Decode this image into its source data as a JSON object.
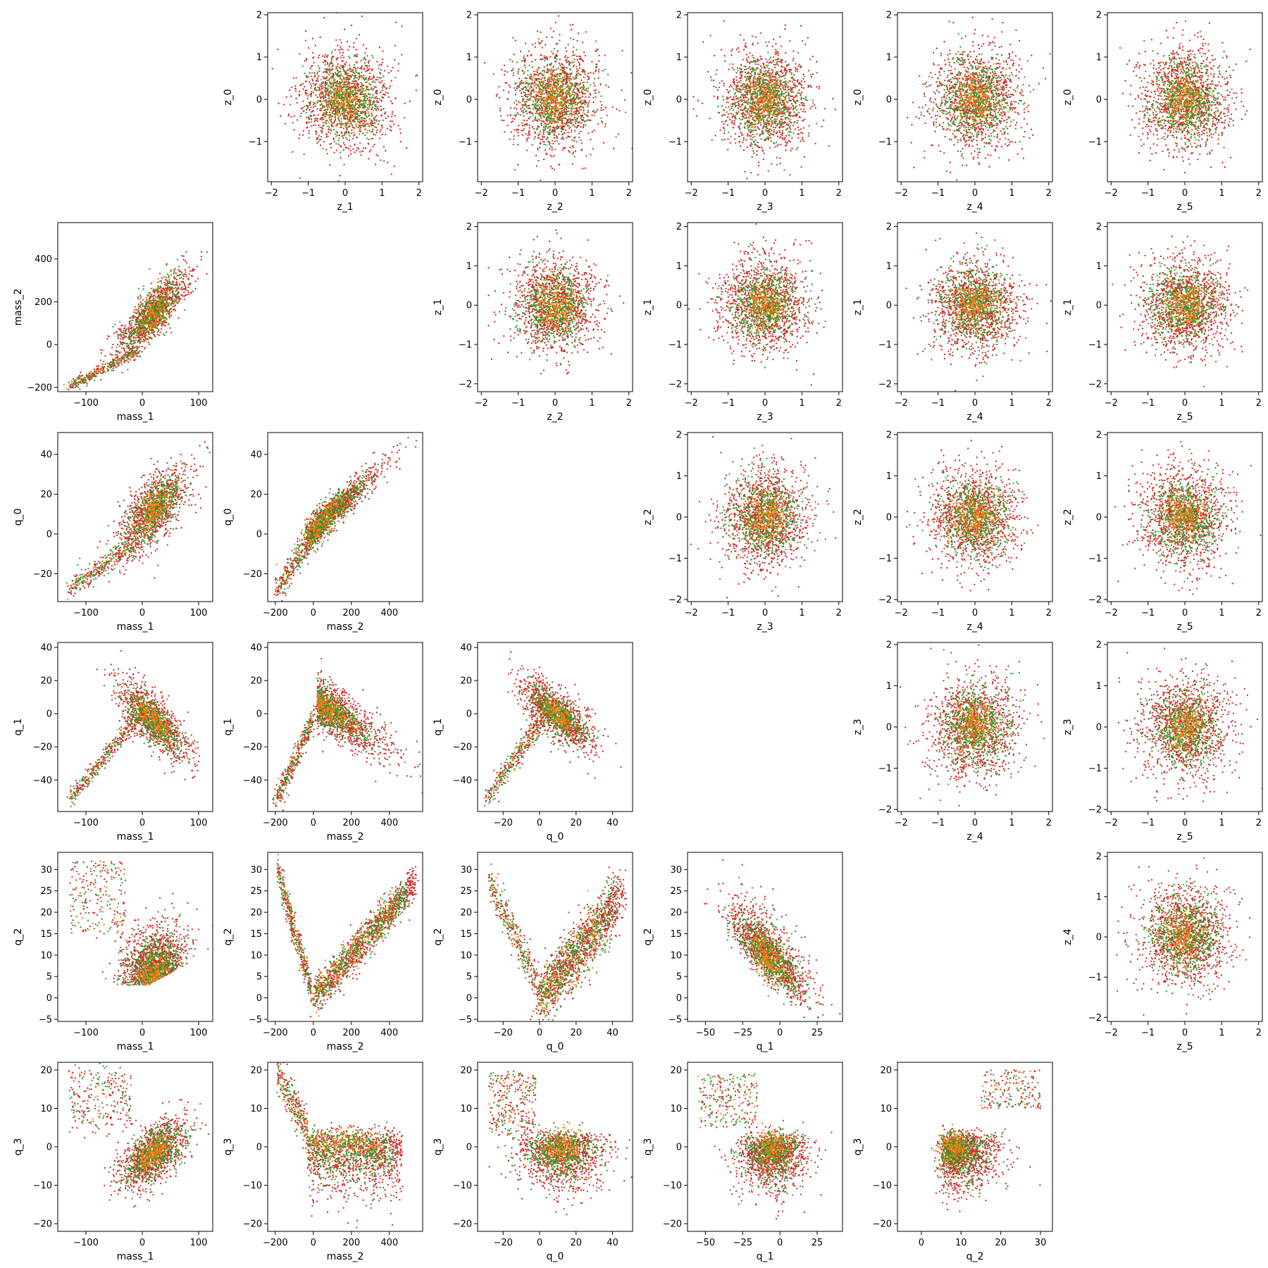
{
  "figure": {
    "rows": 6,
    "cols": 6,
    "colors": {
      "red": "#d62728",
      "green": "#2ca02c",
      "orange": "#ff7f0e",
      "axis": "#000000",
      "background": "#ffffff"
    },
    "series": [
      {
        "color": "red",
        "points_per_panel": 1100
      },
      {
        "color": "green",
        "points_per_panel": 600
      },
      {
        "color": "orange",
        "points_per_panel": 220
      }
    ],
    "marker": "dot"
  },
  "chart_data": [
    {
      "type": "scatter",
      "row": 0,
      "col": 1,
      "xlabel": "z_1",
      "ylabel": "z_0",
      "xlim": [
        -2.1,
        2.1
      ],
      "ylim": [
        -1.95,
        2.05
      ],
      "xticks": [
        -2,
        -1,
        0,
        1,
        2
      ],
      "yticks": [
        -1,
        0,
        1,
        2
      ],
      "xtick_labels": [
        "−2",
        "−1",
        "0",
        "1",
        "2"
      ],
      "ytick_labels": [
        "−1",
        "0",
        "1",
        "2"
      ],
      "pattern": "blob"
    },
    {
      "type": "scatter",
      "row": 0,
      "col": 2,
      "xlabel": "z_2",
      "ylabel": "z_0",
      "xlim": [
        -2.1,
        2.1
      ],
      "ylim": [
        -1.95,
        2.05
      ],
      "xticks": [
        -2,
        -1,
        0,
        1,
        2
      ],
      "yticks": [
        -1,
        0,
        1,
        2
      ],
      "xtick_labels": [
        "−2",
        "−1",
        "0",
        "1",
        "2"
      ],
      "ytick_labels": [
        "−1",
        "0",
        "1",
        "2"
      ],
      "pattern": "blob"
    },
    {
      "type": "scatter",
      "row": 0,
      "col": 3,
      "xlabel": "z_3",
      "ylabel": "z_0",
      "xlim": [
        -2.1,
        2.1
      ],
      "ylim": [
        -1.95,
        2.05
      ],
      "xticks": [
        -2,
        -1,
        0,
        1,
        2
      ],
      "yticks": [
        -1,
        0,
        1,
        2
      ],
      "xtick_labels": [
        "−2",
        "−1",
        "0",
        "1",
        "2"
      ],
      "ytick_labels": [
        "−1",
        "0",
        "1",
        "2"
      ],
      "pattern": "blob"
    },
    {
      "type": "scatter",
      "row": 0,
      "col": 4,
      "xlabel": "z_4",
      "ylabel": "z_0",
      "xlim": [
        -2.1,
        2.1
      ],
      "ylim": [
        -1.95,
        2.05
      ],
      "xticks": [
        -2,
        -1,
        0,
        1,
        2
      ],
      "yticks": [
        -1,
        0,
        1,
        2
      ],
      "xtick_labels": [
        "−2",
        "−1",
        "0",
        "1",
        "2"
      ],
      "ytick_labels": [
        "−1",
        "0",
        "1",
        "2"
      ],
      "pattern": "blob"
    },
    {
      "type": "scatter",
      "row": 0,
      "col": 5,
      "xlabel": "z_5",
      "ylabel": "z_0",
      "xlim": [
        -2.1,
        2.1
      ],
      "ylim": [
        -1.95,
        2.05
      ],
      "xticks": [
        -2,
        -1,
        0,
        1,
        2
      ],
      "yticks": [
        -1,
        0,
        1,
        2
      ],
      "xtick_labels": [
        "−2",
        "−1",
        "0",
        "1",
        "2"
      ],
      "ytick_labels": [
        "−1",
        "0",
        "1",
        "2"
      ],
      "pattern": "blob"
    },
    {
      "type": "scatter",
      "row": 1,
      "col": 0,
      "xlabel": "mass_1",
      "ylabel": "mass_2",
      "xlim": [
        -150,
        125
      ],
      "ylim": [
        -220,
        570
      ],
      "xticks": [
        -100,
        0,
        100
      ],
      "yticks": [
        -200,
        0,
        200,
        400
      ],
      "xtick_labels": [
        "−100",
        "0",
        "100"
      ],
      "ytick_labels": [
        "−200",
        "0",
        "200",
        "400"
      ],
      "pattern": "m1_m2"
    },
    {
      "type": "scatter",
      "row": 1,
      "col": 2,
      "xlabel": "z_2",
      "ylabel": "z_1",
      "xlim": [
        -2.1,
        2.1
      ],
      "ylim": [
        -2.2,
        2.1
      ],
      "xticks": [
        -2,
        -1,
        0,
        1,
        2
      ],
      "yticks": [
        -2,
        -1,
        0,
        1,
        2
      ],
      "xtick_labels": [
        "−2",
        "−1",
        "0",
        "1",
        "2"
      ],
      "ytick_labels": [
        "−2",
        "−1",
        "0",
        "1",
        "2"
      ],
      "pattern": "blob"
    },
    {
      "type": "scatter",
      "row": 1,
      "col": 3,
      "xlabel": "z_3",
      "ylabel": "z_1",
      "xlim": [
        -2.1,
        2.1
      ],
      "ylim": [
        -2.2,
        2.1
      ],
      "xticks": [
        -2,
        -1,
        0,
        1,
        2
      ],
      "yticks": [
        -2,
        -1,
        0,
        1,
        2
      ],
      "xtick_labels": [
        "−2",
        "−1",
        "0",
        "1",
        "2"
      ],
      "ytick_labels": [
        "−2",
        "−1",
        "0",
        "1",
        "2"
      ],
      "pattern": "blob"
    },
    {
      "type": "scatter",
      "row": 1,
      "col": 4,
      "xlabel": "z_4",
      "ylabel": "z_1",
      "xlim": [
        -2.1,
        2.1
      ],
      "ylim": [
        -2.2,
        2.1
      ],
      "xticks": [
        -2,
        -1,
        0,
        1,
        2
      ],
      "yticks": [
        -2,
        -1,
        0,
        1,
        2
      ],
      "xtick_labels": [
        "−2",
        "−1",
        "0",
        "1",
        "2"
      ],
      "ytick_labels": [
        "−2",
        "−1",
        "0",
        "1",
        "2"
      ],
      "pattern": "blob"
    },
    {
      "type": "scatter",
      "row": 1,
      "col": 5,
      "xlabel": "z_5",
      "ylabel": "z_1",
      "xlim": [
        -2.1,
        2.1
      ],
      "ylim": [
        -2.2,
        2.1
      ],
      "xticks": [
        -2,
        -1,
        0,
        1,
        2
      ],
      "yticks": [
        -2,
        -1,
        0,
        1,
        2
      ],
      "xtick_labels": [
        "−2",
        "−1",
        "0",
        "1",
        "2"
      ],
      "ytick_labels": [
        "−2",
        "−1",
        "0",
        "1",
        "2"
      ],
      "pattern": "blob"
    },
    {
      "type": "scatter",
      "row": 2,
      "col": 0,
      "xlabel": "mass_1",
      "ylabel": "q_0",
      "xlim": [
        -150,
        125
      ],
      "ylim": [
        -34,
        51
      ],
      "xticks": [
        -100,
        0,
        100
      ],
      "yticks": [
        -20,
        0,
        20,
        40
      ],
      "xtick_labels": [
        "−100",
        "0",
        "100"
      ],
      "ytick_labels": [
        "−20",
        "0",
        "20",
        "40"
      ],
      "pattern": "m1_q0"
    },
    {
      "type": "scatter",
      "row": 2,
      "col": 1,
      "xlabel": "mass_2",
      "ylabel": "q_0",
      "xlim": [
        -240,
        575
      ],
      "ylim": [
        -34,
        51
      ],
      "xticks": [
        -200,
        0,
        200,
        400
      ],
      "yticks": [
        -20,
        0,
        20,
        40
      ],
      "xtick_labels": [
        "−200",
        "0",
        "200",
        "400"
      ],
      "ytick_labels": [
        "−20",
        "0",
        "20",
        "40"
      ],
      "pattern": "m2_q0"
    },
    {
      "type": "scatter",
      "row": 2,
      "col": 3,
      "xlabel": "z_3",
      "ylabel": "z_2",
      "xlim": [
        -2.1,
        2.1
      ],
      "ylim": [
        -2.05,
        2.05
      ],
      "xticks": [
        -2,
        -1,
        0,
        1,
        2
      ],
      "yticks": [
        -2,
        -1,
        0,
        1,
        2
      ],
      "xtick_labels": [
        "−2",
        "−1",
        "0",
        "1",
        "2"
      ],
      "ytick_labels": [
        "−2",
        "−1",
        "0",
        "1",
        "2"
      ],
      "pattern": "blob"
    },
    {
      "type": "scatter",
      "row": 2,
      "col": 4,
      "xlabel": "z_4",
      "ylabel": "z_2",
      "xlim": [
        -2.1,
        2.1
      ],
      "ylim": [
        -2.05,
        2.05
      ],
      "xticks": [
        -2,
        -1,
        0,
        1,
        2
      ],
      "yticks": [
        -2,
        -1,
        0,
        1,
        2
      ],
      "xtick_labels": [
        "−2",
        "−1",
        "0",
        "1",
        "2"
      ],
      "ytick_labels": [
        "−2",
        "−1",
        "0",
        "1",
        "2"
      ],
      "pattern": "blob"
    },
    {
      "type": "scatter",
      "row": 2,
      "col": 5,
      "xlabel": "z_5",
      "ylabel": "z_2",
      "xlim": [
        -2.1,
        2.1
      ],
      "ylim": [
        -2.05,
        2.05
      ],
      "xticks": [
        -2,
        -1,
        0,
        1,
        2
      ],
      "yticks": [
        -2,
        -1,
        0,
        1,
        2
      ],
      "xtick_labels": [
        "−2",
        "−1",
        "0",
        "1",
        "2"
      ],
      "ytick_labels": [
        "−2",
        "−1",
        "0",
        "1",
        "2"
      ],
      "pattern": "blob"
    },
    {
      "type": "scatter",
      "row": 3,
      "col": 0,
      "xlabel": "mass_1",
      "ylabel": "q_1",
      "xlim": [
        -150,
        125
      ],
      "ylim": [
        -59,
        43
      ],
      "xticks": [
        -100,
        0,
        100
      ],
      "yticks": [
        -40,
        -20,
        0,
        20,
        40
      ],
      "xtick_labels": [
        "−100",
        "0",
        "100"
      ],
      "ytick_labels": [
        "−40",
        "−20",
        "0",
        "20",
        "40"
      ],
      "pattern": "m1_q1"
    },
    {
      "type": "scatter",
      "row": 3,
      "col": 1,
      "xlabel": "mass_2",
      "ylabel": "q_1",
      "xlim": [
        -240,
        575
      ],
      "ylim": [
        -59,
        43
      ],
      "xticks": [
        -200,
        0,
        200,
        400
      ],
      "yticks": [
        -40,
        -20,
        0,
        20,
        40
      ],
      "xtick_labels": [
        "−200",
        "0",
        "200",
        "400"
      ],
      "ytick_labels": [
        "−40",
        "−20",
        "0",
        "20",
        "40"
      ],
      "pattern": "m2_q1"
    },
    {
      "type": "scatter",
      "row": 3,
      "col": 2,
      "xlabel": "q_0",
      "ylabel": "q_1",
      "xlim": [
        -34,
        51
      ],
      "ylim": [
        -59,
        43
      ],
      "xticks": [
        -20,
        0,
        20,
        40
      ],
      "yticks": [
        -40,
        -20,
        0,
        20,
        40
      ],
      "xtick_labels": [
        "−20",
        "0",
        "20",
        "40"
      ],
      "ytick_labels": [
        "−40",
        "−20",
        "0",
        "20",
        "40"
      ],
      "pattern": "q0_q1"
    },
    {
      "type": "scatter",
      "row": 3,
      "col": 4,
      "xlabel": "z_4",
      "ylabel": "z_3",
      "xlim": [
        -2.1,
        2.1
      ],
      "ylim": [
        -2.05,
        2.05
      ],
      "xticks": [
        -2,
        -1,
        0,
        1,
        2
      ],
      "yticks": [
        -2,
        -1,
        0,
        1,
        2
      ],
      "xtick_labels": [
        "−2",
        "−1",
        "0",
        "1",
        "2"
      ],
      "ytick_labels": [
        "−2",
        "−1",
        "0",
        "1",
        "2"
      ],
      "pattern": "blob"
    },
    {
      "type": "scatter",
      "row": 3,
      "col": 5,
      "xlabel": "z_5",
      "ylabel": "z_3",
      "xlim": [
        -2.1,
        2.1
      ],
      "ylim": [
        -2.05,
        2.05
      ],
      "xticks": [
        -2,
        -1,
        0,
        1,
        2
      ],
      "yticks": [
        -2,
        -1,
        0,
        1,
        2
      ],
      "xtick_labels": [
        "−2",
        "−1",
        "0",
        "1",
        "2"
      ],
      "ytick_labels": [
        "−2",
        "−1",
        "0",
        "1",
        "2"
      ],
      "pattern": "blob"
    },
    {
      "type": "scatter",
      "row": 4,
      "col": 0,
      "xlabel": "mass_1",
      "ylabel": "q_2",
      "xlim": [
        -150,
        125
      ],
      "ylim": [
        -5.5,
        34
      ],
      "xticks": [
        -100,
        0,
        100
      ],
      "yticks": [
        -5,
        0,
        5,
        10,
        15,
        20,
        25,
        30
      ],
      "xtick_labels": [
        "−100",
        "0",
        "100"
      ],
      "ytick_labels": [
        "−5",
        "0",
        "5",
        "10",
        "15",
        "20",
        "25",
        "30"
      ],
      "pattern": "m1_q2"
    },
    {
      "type": "scatter",
      "row": 4,
      "col": 1,
      "xlabel": "mass_2",
      "ylabel": "q_2",
      "xlim": [
        -240,
        575
      ],
      "ylim": [
        -5.5,
        34
      ],
      "xticks": [
        -200,
        0,
        200,
        400
      ],
      "yticks": [
        -5,
        0,
        5,
        10,
        15,
        20,
        25,
        30
      ],
      "xtick_labels": [
        "−200",
        "0",
        "200",
        "400"
      ],
      "ytick_labels": [
        "−5",
        "0",
        "5",
        "10",
        "15",
        "20",
        "25",
        "30"
      ],
      "pattern": "m2_q2"
    },
    {
      "type": "scatter",
      "row": 4,
      "col": 2,
      "xlabel": "q_0",
      "ylabel": "q_2",
      "xlim": [
        -34,
        51
      ],
      "ylim": [
        -5.5,
        34
      ],
      "xticks": [
        -20,
        0,
        20,
        40
      ],
      "yticks": [
        -5,
        0,
        5,
        10,
        15,
        20,
        25,
        30
      ],
      "xtick_labels": [
        "−20",
        "0",
        "20",
        "40"
      ],
      "ytick_labels": [
        "−5",
        "0",
        "5",
        "10",
        "15",
        "20",
        "25",
        "30"
      ],
      "pattern": "q0_q2"
    },
    {
      "type": "scatter",
      "row": 4,
      "col": 3,
      "xlabel": "q_1",
      "ylabel": "q_2",
      "xlim": [
        -62,
        42
      ],
      "ylim": [
        -5.5,
        34
      ],
      "xticks": [
        -50,
        -25,
        0,
        25
      ],
      "yticks": [
        -5,
        0,
        5,
        10,
        15,
        20,
        25,
        30
      ],
      "xtick_labels": [
        "−50",
        "−25",
        "0",
        "25"
      ],
      "ytick_labels": [
        "−5",
        "0",
        "5",
        "10",
        "15",
        "20",
        "25",
        "30"
      ],
      "pattern": "q1_q2"
    },
    {
      "type": "scatter",
      "row": 4,
      "col": 5,
      "xlabel": "z_5",
      "ylabel": "z_4",
      "xlim": [
        -2.1,
        2.1
      ],
      "ylim": [
        -2.1,
        2.1
      ],
      "xticks": [
        -2,
        -1,
        0,
        1,
        2
      ],
      "yticks": [
        -2,
        -1,
        0,
        1,
        2
      ],
      "xtick_labels": [
        "−2",
        "−1",
        "0",
        "1",
        "2"
      ],
      "ytick_labels": [
        "−2",
        "−1",
        "0",
        "1",
        "2"
      ],
      "pattern": "blob"
    },
    {
      "type": "scatter",
      "row": 5,
      "col": 0,
      "xlabel": "mass_1",
      "ylabel": "q_3",
      "xlim": [
        -150,
        125
      ],
      "ylim": [
        -22,
        22
      ],
      "xticks": [
        -100,
        0,
        100
      ],
      "yticks": [
        -20,
        -10,
        0,
        10,
        20
      ],
      "xtick_labels": [
        "−100",
        "0",
        "100"
      ],
      "ytick_labels": [
        "−20",
        "−10",
        "0",
        "10",
        "20"
      ],
      "pattern": "m1_q3"
    },
    {
      "type": "scatter",
      "row": 5,
      "col": 1,
      "xlabel": "mass_2",
      "ylabel": "q_3",
      "xlim": [
        -240,
        575
      ],
      "ylim": [
        -22,
        22
      ],
      "xticks": [
        -200,
        0,
        200,
        400
      ],
      "yticks": [
        -20,
        -10,
        0,
        10,
        20
      ],
      "xtick_labels": [
        "−200",
        "0",
        "200",
        "400"
      ],
      "ytick_labels": [
        "−20",
        "−10",
        "0",
        "10",
        "20"
      ],
      "pattern": "m2_q3"
    },
    {
      "type": "scatter",
      "row": 5,
      "col": 2,
      "xlabel": "q_0",
      "ylabel": "q_3",
      "xlim": [
        -34,
        51
      ],
      "ylim": [
        -22,
        22
      ],
      "xticks": [
        -20,
        0,
        20,
        40
      ],
      "yticks": [
        -20,
        -10,
        0,
        10,
        20
      ],
      "xtick_labels": [
        "−20",
        "0",
        "20",
        "40"
      ],
      "ytick_labels": [
        "−20",
        "−10",
        "0",
        "10",
        "20"
      ],
      "pattern": "q0_q3"
    },
    {
      "type": "scatter",
      "row": 5,
      "col": 3,
      "xlabel": "q_1",
      "ylabel": "q_3",
      "xlim": [
        -62,
        42
      ],
      "ylim": [
        -22,
        22
      ],
      "xticks": [
        -50,
        -25,
        0,
        25
      ],
      "yticks": [
        -20,
        -10,
        0,
        10,
        20
      ],
      "xtick_labels": [
        "−50",
        "−25",
        "0",
        "25"
      ],
      "ytick_labels": [
        "−20",
        "−10",
        "0",
        "10",
        "20"
      ],
      "pattern": "q1_q3"
    },
    {
      "type": "scatter",
      "row": 5,
      "col": 4,
      "xlabel": "q_2",
      "ylabel": "q_3",
      "xlim": [
        -6,
        33
      ],
      "ylim": [
        -22,
        22
      ],
      "xticks": [
        0,
        10,
        20,
        30
      ],
      "yticks": [
        -20,
        -10,
        0,
        10,
        20
      ],
      "xtick_labels": [
        "0",
        "10",
        "20",
        "30"
      ],
      "ytick_labels": [
        "−20",
        "−10",
        "0",
        "10",
        "20"
      ],
      "pattern": "q2_q3"
    }
  ]
}
